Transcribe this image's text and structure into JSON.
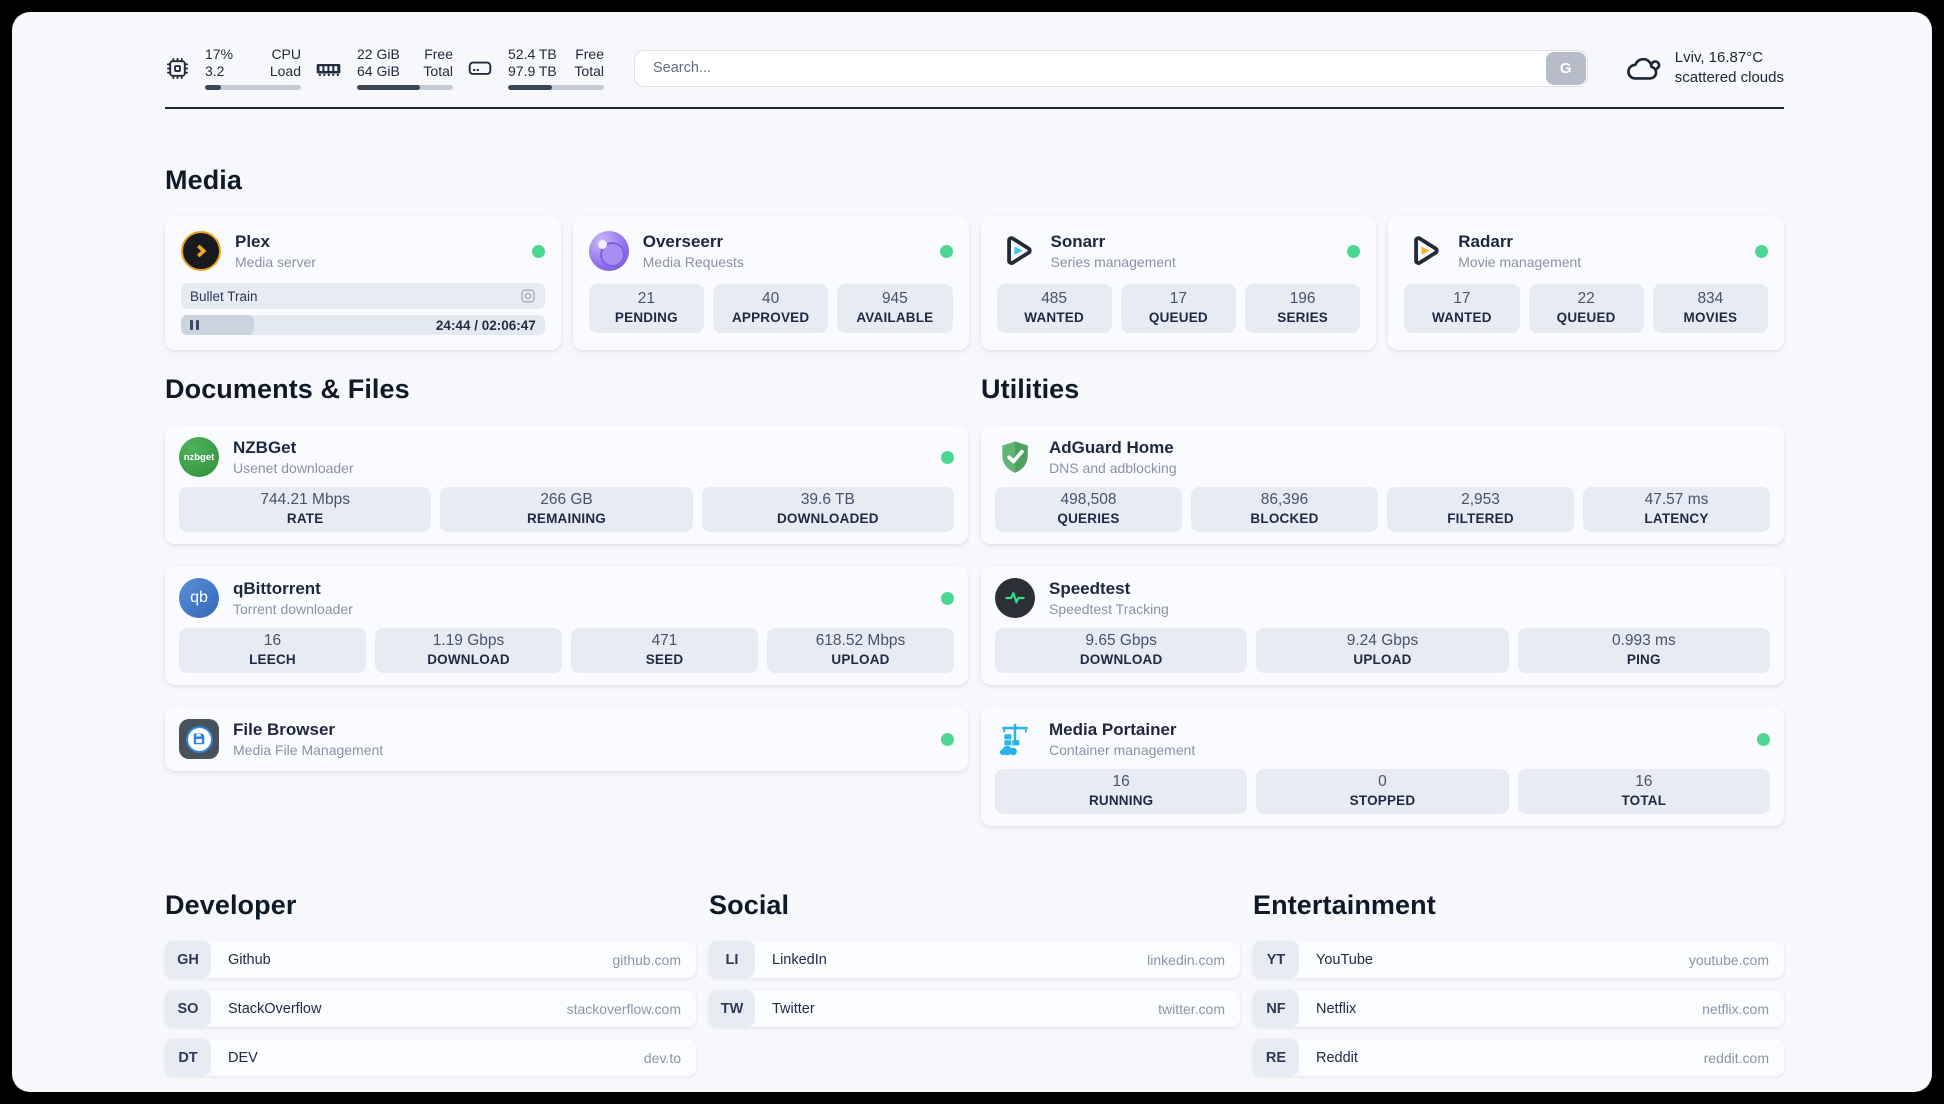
{
  "topbar": {
    "monitors": [
      {
        "value_top": "17%",
        "value_bottom": "3.2",
        "label_top": "CPU",
        "label_bottom": "Load",
        "progress_pct": 17
      },
      {
        "value_top": "22 GiB",
        "value_bottom": "64 GiB",
        "label_top": "Free",
        "label_bottom": "Total",
        "progress_pct": 66
      },
      {
        "value_top": "52.4 TB",
        "value_bottom": "97.9 TB",
        "label_top": "Free",
        "label_bottom": "Total",
        "progress_pct": 46
      }
    ],
    "search": {
      "placeholder": "Search...",
      "button_label": "G"
    },
    "weather": {
      "location": "Lviv, 16.87°C",
      "condition": "scattered clouds"
    }
  },
  "media": {
    "title": "Media",
    "plex": {
      "title": "Plex",
      "subtitle": "Media server",
      "now_playing": "Bullet Train",
      "time": "24:44 / 02:06:47",
      "progress_pct": 20
    },
    "overseerr": {
      "title": "Overseerr",
      "subtitle": "Media Requests",
      "stats": [
        {
          "value": "21",
          "label": "PENDING"
        },
        {
          "value": "40",
          "label": "APPROVED"
        },
        {
          "value": "945",
          "label": "AVAILABLE"
        }
      ]
    },
    "sonarr": {
      "title": "Sonarr",
      "subtitle": "Series management",
      "stats": [
        {
          "value": "485",
          "label": "WANTED"
        },
        {
          "value": "17",
          "label": "QUEUED"
        },
        {
          "value": "196",
          "label": "SERIES"
        }
      ]
    },
    "radarr": {
      "title": "Radarr",
      "subtitle": "Movie management",
      "stats": [
        {
          "value": "17",
          "label": "WANTED"
        },
        {
          "value": "22",
          "label": "QUEUED"
        },
        {
          "value": "834",
          "label": "MOVIES"
        }
      ]
    }
  },
  "documents": {
    "title": "Documents & Files",
    "nzbget": {
      "title": "NZBGet",
      "subtitle": "Usenet downloader",
      "icon_text": "nzbget",
      "stats": [
        {
          "value": "744.21 Mbps",
          "label": "RATE"
        },
        {
          "value": "266 GB",
          "label": "REMAINING"
        },
        {
          "value": "39.6 TB",
          "label": "DOWNLOADED"
        }
      ]
    },
    "qbittorrent": {
      "title": "qBittorrent",
      "subtitle": "Torrent downloader",
      "icon_text": "qb",
      "stats": [
        {
          "value": "16",
          "label": "LEECH"
        },
        {
          "value": "1.19 Gbps",
          "label": "DOWNLOAD"
        },
        {
          "value": "471",
          "label": "SEED"
        },
        {
          "value": "618.52 Mbps",
          "label": "UPLOAD"
        }
      ]
    },
    "filebrowser": {
      "title": "File Browser",
      "subtitle": "Media File Management"
    }
  },
  "utilities": {
    "title": "Utilities",
    "adguard": {
      "title": "AdGuard Home",
      "subtitle": "DNS and adblocking",
      "stats": [
        {
          "value": "498,508",
          "label": "QUERIES"
        },
        {
          "value": "86,396",
          "label": "BLOCKED"
        },
        {
          "value": "2,953",
          "label": "FILTERED"
        },
        {
          "value": "47.57 ms",
          "label": "LATENCY"
        }
      ]
    },
    "speedtest": {
      "title": "Speedtest",
      "subtitle": "Speedtest Tracking",
      "stats": [
        {
          "value": "9.65 Gbps",
          "label": "DOWNLOAD"
        },
        {
          "value": "9.24 Gbps",
          "label": "UPLOAD"
        },
        {
          "value": "0.993 ms",
          "label": "PING"
        }
      ]
    },
    "portainer": {
      "title": "Media Portainer",
      "subtitle": "Container management",
      "stats": [
        {
          "value": "16",
          "label": "RUNNING"
        },
        {
          "value": "0",
          "label": "STOPPED"
        },
        {
          "value": "16",
          "label": "TOTAL"
        }
      ]
    }
  },
  "bookmarks": {
    "developer": {
      "title": "Developer",
      "items": [
        {
          "abbr": "GH",
          "name": "Github",
          "url": "github.com"
        },
        {
          "abbr": "SO",
          "name": "StackOverflow",
          "url": "stackoverflow.com"
        },
        {
          "abbr": "DT",
          "name": "DEV",
          "url": "dev.to"
        }
      ]
    },
    "social": {
      "title": "Social",
      "items": [
        {
          "abbr": "LI",
          "name": "LinkedIn",
          "url": "linkedin.com"
        },
        {
          "abbr": "TW",
          "name": "Twitter",
          "url": "twitter.com"
        }
      ]
    },
    "entertainment": {
      "title": "Entertainment",
      "items": [
        {
          "abbr": "YT",
          "name": "YouTube",
          "url": "youtube.com"
        },
        {
          "abbr": "NF",
          "name": "Netflix",
          "url": "netflix.com"
        },
        {
          "abbr": "RE",
          "name": "Reddit",
          "url": "reddit.com"
        }
      ]
    }
  },
  "colors": {
    "status_online": "#4cd893",
    "bar_fill": "#3d4655",
    "accent_text": "#1d2634"
  }
}
